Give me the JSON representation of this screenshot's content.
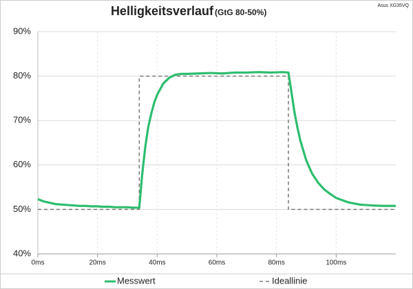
{
  "chart_data": {
    "type": "line",
    "title": "Helligkeitsverlauf",
    "subtitle": "(GtG 80-50%)",
    "annotation": "Asus XG35VQ",
    "xlim": [
      0,
      120
    ],
    "xticks": [
      {
        "value": 0,
        "label": "0ms"
      },
      {
        "value": 20,
        "label": "20ms"
      },
      {
        "value": 40,
        "label": "40ms"
      },
      {
        "value": 60,
        "label": "60ms"
      },
      {
        "value": 80,
        "label": "80ms"
      },
      {
        "value": 100,
        "label": "100ms"
      }
    ],
    "ylim": [
      40,
      90
    ],
    "yticks": [
      {
        "value": 40,
        "label": "40%"
      },
      {
        "value": 50,
        "label": "50%"
      },
      {
        "value": 60,
        "label": "60%"
      },
      {
        "value": 70,
        "label": "70%"
      },
      {
        "value": 80,
        "label": "80%"
      },
      {
        "value": 90,
        "label": "90%"
      }
    ],
    "grid": true,
    "legend": "bottom",
    "series": [
      {
        "name": "Messwert",
        "color": "#2dbd6e",
        "dash": false,
        "x": [
          0,
          2,
          4,
          6,
          8,
          10,
          12,
          14,
          16,
          18,
          20,
          22,
          24,
          26,
          28,
          30,
          32,
          34,
          35,
          36,
          37,
          38,
          39,
          40,
          42,
          44,
          46,
          48,
          50,
          54,
          58,
          62,
          66,
          70,
          74,
          78,
          82,
          84,
          85,
          86,
          87,
          88,
          90,
          92,
          94,
          96,
          98,
          100,
          104,
          108,
          112,
          116,
          120
        ],
        "values": [
          52.3,
          51.8,
          51.5,
          51.2,
          51.1,
          51.0,
          50.9,
          50.8,
          50.8,
          50.7,
          50.7,
          50.6,
          50.6,
          50.5,
          50.5,
          50.5,
          50.4,
          50.4,
          58,
          64,
          68.5,
          71.5,
          74,
          75.8,
          78.3,
          79.6,
          80.3,
          80.5,
          80.5,
          80.6,
          80.7,
          80.6,
          80.8,
          80.8,
          80.9,
          80.8,
          80.9,
          80.8,
          76.5,
          72,
          68.5,
          65.5,
          61,
          58,
          56,
          54.5,
          53.5,
          52.6,
          51.6,
          51.1,
          50.9,
          50.8,
          50.8
        ]
      },
      {
        "name": "Ideallinie",
        "color": "#777777",
        "dash": true,
        "x": [
          0,
          34,
          34,
          84,
          84,
          120
        ],
        "values": [
          50,
          50,
          80,
          80,
          50,
          50
        ]
      }
    ]
  }
}
